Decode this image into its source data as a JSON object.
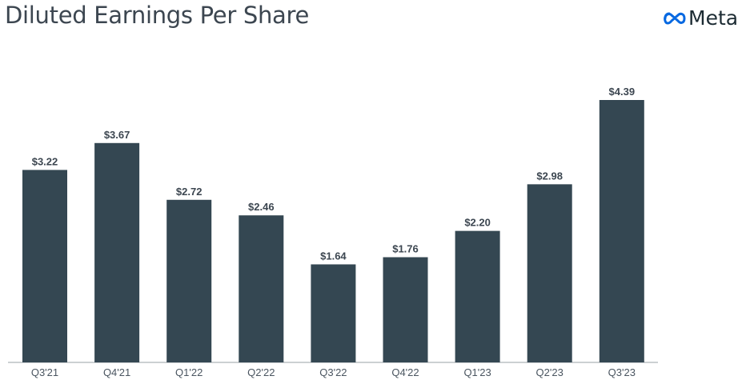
{
  "header": {
    "title": "Diluted Earnings Per Share",
    "logo": "Meta"
  },
  "colors": {
    "bar": "#344752",
    "axis": "#9aa0a6",
    "logo_blue": "#0668e1"
  },
  "chart_data": {
    "type": "bar",
    "title": "Diluted Earnings Per Share",
    "xlabel": "",
    "ylabel": "",
    "categories": [
      "Q3'21",
      "Q4'21",
      "Q1'22",
      "Q2'22",
      "Q3'22",
      "Q4'22",
      "Q1'23",
      "Q2'23",
      "Q3'23"
    ],
    "values": [
      3.22,
      3.67,
      2.72,
      2.46,
      1.64,
      1.76,
      2.2,
      2.98,
      4.39
    ],
    "labels": [
      "$3.22",
      "$3.67",
      "$2.72",
      "$2.46",
      "$1.64",
      "$1.76",
      "$2.20",
      "$2.98",
      "$4.39"
    ],
    "ylim": [
      0,
      4.39
    ],
    "grid": false
  }
}
